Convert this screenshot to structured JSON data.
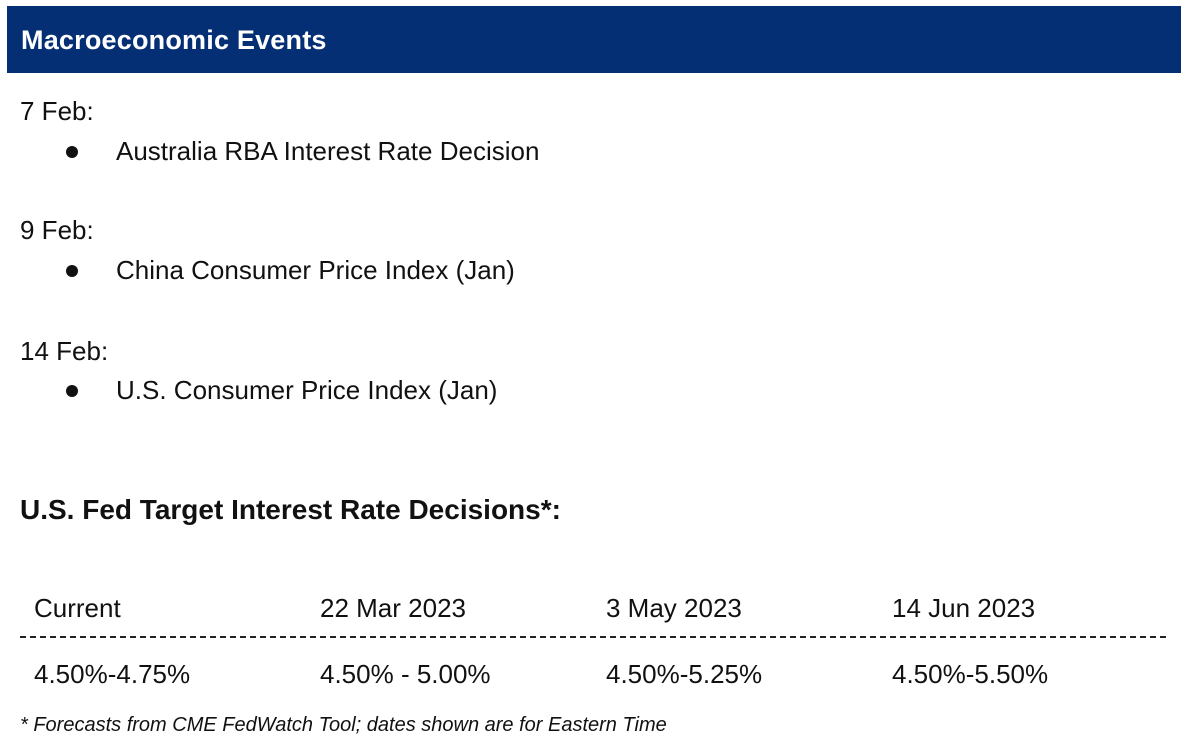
{
  "header": {
    "title": "Macroeconomic Events"
  },
  "events": [
    {
      "date": "7 Feb:",
      "items": [
        "Australia RBA Interest Rate Decision"
      ]
    },
    {
      "date": "9 Feb:",
      "items": [
        "China Consumer Price Index (Jan)"
      ]
    },
    {
      "date": "14 Feb:",
      "items": [
        "U.S. Consumer Price Index (Jan)"
      ]
    }
  ],
  "fed": {
    "title": "U.S. Fed Target Interest Rate Decisions*:",
    "table": {
      "headers": [
        "Current",
        "22 Mar 2023",
        "3 May 2023",
        "14 Jun 2023"
      ],
      "values": [
        "4.50%-4.75%",
        "4.50% - 5.00%",
        "4.50%-5.25%",
        "4.50%-5.50%"
      ]
    },
    "footnote": "* Forecasts from CME FedWatch Tool; dates shown are for Eastern Time"
  },
  "colors": {
    "header_bg": "#052f74",
    "header_text": "#ffffff",
    "body_text": "#111111"
  }
}
